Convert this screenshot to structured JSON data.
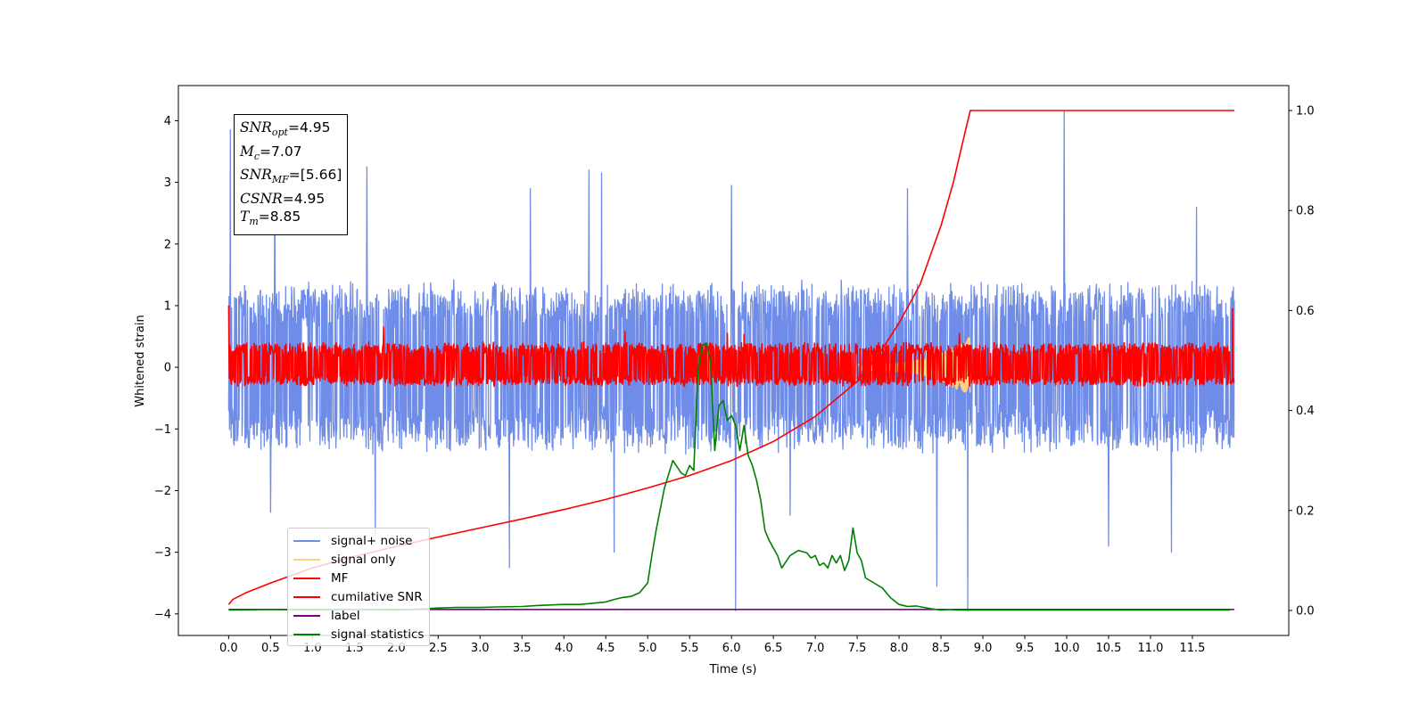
{
  "chart_data": {
    "type": "line",
    "xlabel": "Time (s)",
    "ylabel": "Whitened strain",
    "xlim": [
      -0.6,
      12.65
    ],
    "ylim": [
      -4.35,
      4.57
    ],
    "ylim_right": [
      -0.05,
      1.05
    ],
    "x_ticks": [
      "0.0",
      "0.5",
      "1.0",
      "1.5",
      "2.0",
      "2.5",
      "3.0",
      "3.5",
      "4.0",
      "4.5",
      "5.0",
      "5.5",
      "6.0",
      "6.5",
      "7.0",
      "7.5",
      "8.0",
      "8.5",
      "9.0",
      "9.5",
      "10.0",
      "10.5",
      "11.0",
      "11.5"
    ],
    "y_ticks_left": [
      "4",
      "3",
      "2",
      "1",
      "0",
      "−1",
      "−2",
      "−3",
      "−4"
    ],
    "y_ticks_right": [
      "1.0",
      "0.8",
      "0.6",
      "0.4",
      "0.2",
      "0.0"
    ],
    "annotation": {
      "snr_opt": "=4.95",
      "mc": "=7.07",
      "snr_mf": "=[5.66]",
      "csnr": "=4.95",
      "tm": "=8.85"
    },
    "legend_position": "lower-left",
    "series": [
      {
        "name": "signal+ noise",
        "axis": "left",
        "color": "#6f8de8",
        "kind": "noise",
        "t_range": [
          0.0,
          12.0
        ],
        "band": [
          -1.3,
          1.3
        ],
        "peaks": [
          [
            0.02,
            3.85
          ],
          [
            0.55,
            3.1
          ],
          [
            1.65,
            3.25
          ],
          [
            3.6,
            2.9
          ],
          [
            4.3,
            3.2
          ],
          [
            4.45,
            3.15
          ],
          [
            6.0,
            2.95
          ],
          [
            8.1,
            2.9
          ],
          [
            9.97,
            4.15
          ],
          [
            11.55,
            2.6
          ]
        ],
        "troughs": [
          [
            0.5,
            -2.35
          ],
          [
            1.75,
            -2.7
          ],
          [
            3.35,
            -3.25
          ],
          [
            4.6,
            -3.0
          ],
          [
            6.05,
            -3.95
          ],
          [
            6.7,
            -2.4
          ],
          [
            8.45,
            -3.55
          ],
          [
            8.82,
            -3.95
          ],
          [
            10.5,
            -2.9
          ],
          [
            11.25,
            -3.0
          ]
        ]
      },
      {
        "name": "signal only",
        "axis": "left",
        "color": "#ffd080",
        "kind": "chirp",
        "t_range": [
          7.5,
          8.85
        ],
        "amplitude": [
          0.05,
          0.5
        ]
      },
      {
        "name": "MF",
        "axis": "left",
        "color": "#ff0000",
        "kind": "noise",
        "t_range": [
          0.0,
          12.0
        ],
        "band": [
          -0.28,
          0.38
        ],
        "peaks": [
          [
            0.0,
            1.0
          ],
          [
            1.85,
            0.65
          ],
          [
            4.73,
            0.58
          ],
          [
            5.95,
            0.55
          ],
          [
            6.15,
            0.53
          ],
          [
            8.72,
            0.55
          ],
          [
            11.98,
            0.95
          ]
        ],
        "troughs": []
      },
      {
        "name": "cumilative SNR",
        "axis": "right",
        "color": "#ff0000",
        "kind": "curve",
        "x": [
          0.0,
          0.05,
          0.2,
          0.5,
          1.0,
          1.5,
          2.0,
          2.5,
          3.0,
          3.5,
          4.0,
          4.5,
          5.0,
          5.5,
          6.0,
          6.5,
          7.0,
          7.5,
          7.75,
          8.0,
          8.25,
          8.5,
          8.65,
          8.75,
          8.8,
          8.85,
          12.0
        ],
        "y": [
          0.012,
          0.022,
          0.035,
          0.055,
          0.085,
          0.108,
          0.128,
          0.147,
          0.165,
          0.183,
          0.202,
          0.222,
          0.245,
          0.27,
          0.3,
          0.338,
          0.388,
          0.458,
          0.51,
          0.575,
          0.652,
          0.77,
          0.858,
          0.93,
          0.965,
          1.0,
          1.0
        ]
      },
      {
        "name": "label",
        "axis": "right",
        "color": "#800080",
        "kind": "curve",
        "x": [
          0.0,
          12.0
        ],
        "y": [
          0.002,
          0.002
        ]
      },
      {
        "name": "signal statistics",
        "axis": "right",
        "color": "#008000",
        "kind": "curve",
        "x": [
          0.0,
          0.5,
          1.0,
          1.5,
          2.0,
          2.3,
          2.5,
          2.7,
          3.0,
          3.2,
          3.5,
          3.7,
          4.0,
          4.2,
          4.5,
          4.6,
          4.7,
          4.8,
          4.9,
          5.0,
          5.05,
          5.1,
          5.2,
          5.3,
          5.4,
          5.45,
          5.5,
          5.55,
          5.6,
          5.65,
          5.7,
          5.75,
          5.8,
          5.85,
          5.9,
          5.95,
          6.0,
          6.05,
          6.1,
          6.15,
          6.2,
          6.25,
          6.3,
          6.35,
          6.4,
          6.45,
          6.5,
          6.55,
          6.6,
          6.7,
          6.8,
          6.9,
          6.95,
          7.0,
          7.05,
          7.1,
          7.15,
          7.2,
          7.25,
          7.3,
          7.35,
          7.4,
          7.45,
          7.5,
          7.55,
          7.6,
          7.7,
          7.8,
          7.9,
          8.0,
          8.1,
          8.2,
          8.3,
          8.4,
          8.5,
          8.6,
          8.7,
          8.8,
          9.0,
          10.0,
          11.0,
          11.95
        ],
        "y": [
          0.001,
          0.002,
          0.001,
          0.002,
          0.001,
          0.003,
          0.005,
          0.006,
          0.006,
          0.007,
          0.008,
          0.01,
          0.012,
          0.012,
          0.017,
          0.022,
          0.026,
          0.028,
          0.035,
          0.055,
          0.11,
          0.16,
          0.245,
          0.3,
          0.275,
          0.27,
          0.29,
          0.28,
          0.48,
          0.53,
          0.535,
          0.5,
          0.32,
          0.41,
          0.42,
          0.38,
          0.39,
          0.37,
          0.32,
          0.37,
          0.31,
          0.29,
          0.26,
          0.22,
          0.16,
          0.14,
          0.125,
          0.11,
          0.085,
          0.11,
          0.12,
          0.115,
          0.105,
          0.11,
          0.09,
          0.095,
          0.085,
          0.11,
          0.095,
          0.11,
          0.08,
          0.1,
          0.165,
          0.115,
          0.1,
          0.065,
          0.055,
          0.045,
          0.025,
          0.012,
          0.008,
          0.009,
          0.006,
          0.003,
          0.001,
          0.002,
          0.001,
          0.001,
          0.001,
          0.001,
          0.001,
          0.001
        ]
      }
    ]
  }
}
